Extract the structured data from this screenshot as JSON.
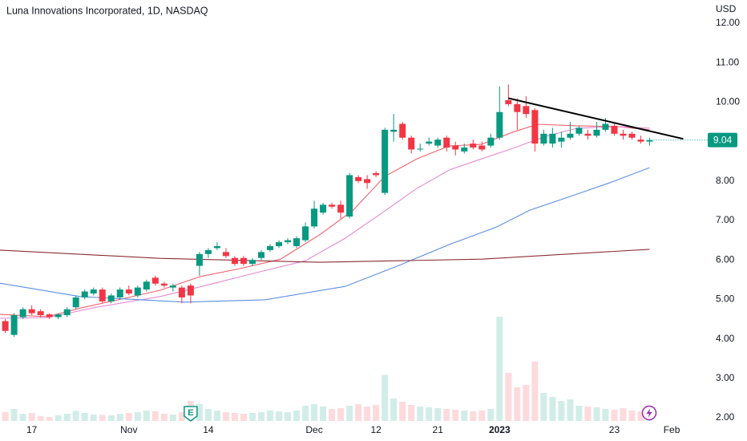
{
  "chart_data": {
    "type": "candlestick",
    "title": "Luna Innovations Incorporated, 1D, NASDAQ",
    "currency": "USD",
    "up_color": "#089981",
    "down_color": "#f23645",
    "xlim": [
      -0.6,
      78.4
    ],
    "ylim": [
      1.41,
      12.59
    ],
    "yticks": [
      {
        "value": 12,
        "label": "12.00"
      },
      {
        "value": 11,
        "label": "11.00"
      },
      {
        "value": 10,
        "label": "10.00"
      },
      {
        "value": 9,
        "label": "9.00"
      },
      {
        "value": 8,
        "label": "8.00"
      },
      {
        "value": 7,
        "label": "7.00"
      },
      {
        "value": 6,
        "label": "6.00"
      },
      {
        "value": 5,
        "label": "5.00"
      },
      {
        "value": 4,
        "label": "4.00"
      },
      {
        "value": 3,
        "label": "3.00"
      },
      {
        "value": 2,
        "label": "2.00"
      }
    ],
    "xticks": [
      {
        "value": 3,
        "label": "17"
      },
      {
        "value": 14,
        "label": "Nov"
      },
      {
        "value": 23,
        "label": "14"
      },
      {
        "value": 35,
        "label": "Dec"
      },
      {
        "value": 42,
        "label": "12"
      },
      {
        "value": 49,
        "label": "21"
      },
      {
        "value": 56,
        "label": "2023"
      },
      {
        "value": 69,
        "label": "23"
      },
      {
        "value": 75.5,
        "label": "Feb"
      }
    ],
    "open": [
      4.45,
      4.1,
      4.55,
      4.75,
      4.7,
      4.62,
      4.55,
      4.6,
      4.8,
      5.05,
      5.15,
      5.25,
      4.95,
      5.05,
      5.25,
      5.1,
      5.25,
      5.55,
      5.4,
      5.3,
      5.3,
      5.35,
      5.85,
      6.15,
      6.3,
      6.2,
      6.05,
      6.05,
      5.9,
      6.05,
      6.25,
      6.35,
      6.45,
      6.35,
      6.5,
      6.85,
      7.2,
      7.4,
      7.4,
      7.1,
      8.1,
      8.05,
      8.2,
      7.7,
      9.25,
      9.45,
      9.1,
      8.8,
      8.95,
      8.9,
      9.1,
      8.9,
      8.75,
      8.95,
      8.9,
      8.9,
      9.1,
      10.05,
      9.95,
      9.9,
      9.8,
      8.95,
      8.95,
      9.0,
      9.1,
      9.2,
      9.2,
      9.15,
      9.3,
      9.4,
      9.2,
      9.2,
      9.05,
      9.0
    ],
    "high": [
      4.5,
      4.65,
      4.8,
      4.85,
      4.75,
      4.65,
      4.65,
      4.8,
      5.1,
      5.25,
      5.3,
      5.3,
      5.15,
      5.3,
      5.35,
      5.35,
      5.5,
      5.6,
      5.45,
      5.4,
      5.35,
      5.4,
      6.2,
      6.3,
      6.45,
      6.3,
      6.1,
      6.1,
      6.05,
      6.25,
      6.4,
      6.5,
      6.55,
      6.6,
      6.95,
      7.5,
      7.45,
      7.45,
      7.5,
      8.2,
      8.15,
      8.15,
      8.25,
      9.35,
      9.7,
      9.5,
      9.15,
      8.95,
      9.1,
      9.1,
      9.15,
      9.0,
      8.95,
      9.05,
      9.0,
      9.2,
      10.4,
      10.45,
      10.1,
      10.15,
      9.85,
      9.3,
      9.35,
      9.25,
      9.5,
      9.4,
      9.3,
      9.5,
      9.6,
      9.45,
      9.3,
      9.25,
      9.15,
      9.1
    ],
    "low": [
      4.15,
      4.05,
      4.5,
      4.6,
      4.55,
      4.5,
      4.5,
      4.55,
      4.75,
      5.0,
      5.1,
      4.9,
      4.9,
      5.0,
      5.1,
      5.05,
      5.2,
      5.35,
      5.3,
      5.2,
      4.9,
      4.9,
      5.6,
      6.05,
      6.25,
      6.05,
      5.85,
      5.85,
      5.85,
      6.0,
      6.2,
      6.3,
      6.4,
      6.3,
      6.45,
      6.8,
      7.15,
      7.3,
      7.05,
      7.05,
      7.95,
      7.8,
      8.1,
      7.65,
      9.0,
      9.05,
      8.7,
      8.75,
      8.9,
      8.85,
      8.75,
      8.65,
      8.7,
      8.8,
      8.75,
      8.85,
      9.05,
      9.9,
      9.3,
      9.6,
      8.75,
      8.9,
      8.85,
      8.85,
      9.05,
      9.15,
      9.05,
      9.1,
      9.25,
      9.15,
      9.05,
      9.05,
      8.95,
      8.9
    ],
    "close": [
      4.2,
      4.6,
      4.75,
      4.65,
      4.6,
      4.55,
      4.62,
      4.75,
      5.05,
      5.2,
      5.25,
      4.95,
      5.1,
      5.25,
      5.15,
      5.3,
      5.45,
      5.4,
      5.35,
      5.35,
      5.05,
      5.1,
      6.15,
      6.25,
      6.35,
      6.1,
      5.9,
      5.9,
      6.0,
      6.2,
      6.35,
      6.45,
      6.5,
      6.55,
      6.85,
      7.3,
      7.4,
      7.35,
      7.2,
      8.15,
      8.0,
      7.95,
      8.15,
      9.3,
      9.3,
      9.1,
      8.8,
      8.82,
      9.0,
      9.05,
      8.85,
      8.8,
      8.85,
      8.85,
      8.8,
      9.1,
      9.75,
      9.95,
      9.75,
      9.7,
      8.95,
      9.2,
      9.2,
      9.1,
      9.2,
      9.35,
      9.15,
      9.3,
      9.45,
      9.2,
      9.15,
      9.1,
      9.0,
      9.04
    ],
    "volume": [
      220,
      300,
      180,
      200,
      120,
      100,
      140,
      180,
      250,
      200,
      160,
      150,
      140,
      180,
      200,
      220,
      260,
      240,
      180,
      160,
      220,
      500,
      420,
      300,
      260,
      220,
      200,
      180,
      200,
      220,
      260,
      240,
      220,
      260,
      380,
      420,
      360,
      300,
      320,
      380,
      420,
      360,
      400,
      1150,
      560,
      480,
      400,
      360,
      340,
      320,
      300,
      280,
      260,
      240,
      260,
      300,
      2600,
      1200,
      840,
      900,
      1480,
      700,
      600,
      500,
      540,
      380,
      360,
      340,
      300,
      280,
      320,
      260,
      240,
      160
    ],
    "volume_ylim": [
      0,
      3000
    ],
    "last_price": 9.04,
    "lines": [
      {
        "color": "#f0606a",
        "x": [
          -0.6,
          4.8,
          8.5,
          13,
          17.5,
          22.1,
          26.6,
          31.2,
          35.7,
          39.4,
          43,
          46.6,
          50.3,
          53.9,
          57.5,
          60.3,
          64.8,
          69.4,
          73
        ],
        "values": [
          4.62,
          4.56,
          4.78,
          5.0,
          5.23,
          5.58,
          5.78,
          6.02,
          6.65,
          7.26,
          8.12,
          8.56,
          8.89,
          8.93,
          9.24,
          9.44,
          9.4,
          9.38,
          9.3
        ]
      },
      {
        "color": "#e48ad0",
        "x": [
          -0.6,
          4.8,
          10.3,
          17.5,
          23,
          28.5,
          34,
          38.5,
          42.1,
          46.6,
          50.3,
          53.9,
          57.5,
          61.2,
          64.8,
          69.4,
          73
        ],
        "values": [
          4.52,
          4.54,
          4.8,
          5.07,
          5.37,
          5.68,
          5.98,
          6.55,
          7.1,
          7.81,
          8.28,
          8.56,
          8.83,
          9.13,
          9.34,
          9.38,
          9.34
        ]
      },
      {
        "color": "#5b8fe0",
        "x": [
          -0.6,
          8.5,
          20.3,
          29.4,
          38.5,
          44.8,
          50.3,
          55.7,
          59.4,
          64.8,
          68.5,
          73
        ],
        "values": [
          5.41,
          5.07,
          4.93,
          4.99,
          5.33,
          5.88,
          6.39,
          6.84,
          7.26,
          7.67,
          7.96,
          8.34
        ]
      },
      {
        "color": "#8b2d35",
        "x": [
          -0.6,
          17.5,
          35.7,
          54,
          73
        ],
        "values": [
          6.25,
          6.04,
          5.94,
          6.02,
          6.27
        ]
      }
    ],
    "trendline": {
      "color": "#000000",
      "x": [
        57,
        76.8
      ],
      "values": [
        10.1,
        9.07
      ]
    },
    "earnings": {
      "x": 21,
      "label": "E"
    }
  }
}
